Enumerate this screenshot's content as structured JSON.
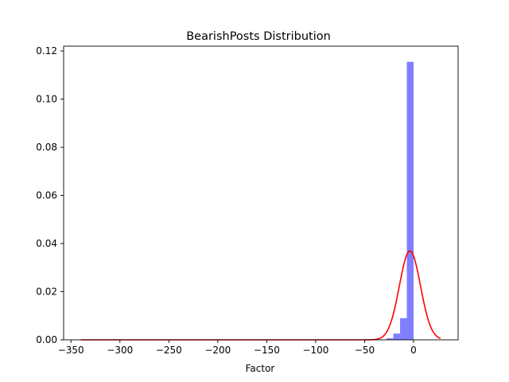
{
  "chart_data": {
    "type": "histogram-with-density-line",
    "title": "BearishPosts Distribution",
    "xlabel": "Factor",
    "ylabel": "",
    "xlim": [
      -357.5,
      45.5
    ],
    "ylim": [
      0,
      0.122
    ],
    "x_ticks": [
      -350,
      -300,
      -250,
      -200,
      -150,
      -100,
      -50,
      0
    ],
    "x_tick_labels": [
      "−350",
      "−300",
      "−250",
      "−200",
      "−150",
      "−100",
      "−50",
      "0"
    ],
    "y_ticks": [
      0.0,
      0.02,
      0.04,
      0.06,
      0.08,
      0.1,
      0.12
    ],
    "y_tick_labels": [
      "0.00",
      "0.02",
      "0.04",
      "0.06",
      "0.08",
      "0.10",
      "0.12"
    ],
    "grid": false,
    "histogram": {
      "color": "#7f7fff",
      "bin_width": 6.9,
      "bins": [
        {
          "x0": -34.5,
          "x1": -27.6,
          "height": 0.0001
        },
        {
          "x0": -27.6,
          "x1": -20.7,
          "height": 0.0006
        },
        {
          "x0": -20.7,
          "x1": -13.8,
          "height": 0.0026
        },
        {
          "x0": -13.8,
          "x1": -6.9,
          "height": 0.009
        },
        {
          "x0": -6.9,
          "x1": 0.0,
          "height": 0.1155
        }
      ]
    },
    "density_curve": {
      "color": "#ff0000",
      "distribution": "normal",
      "mean": -3.7,
      "std": 10.8,
      "x_range": [
        -340,
        27.5
      ]
    }
  }
}
